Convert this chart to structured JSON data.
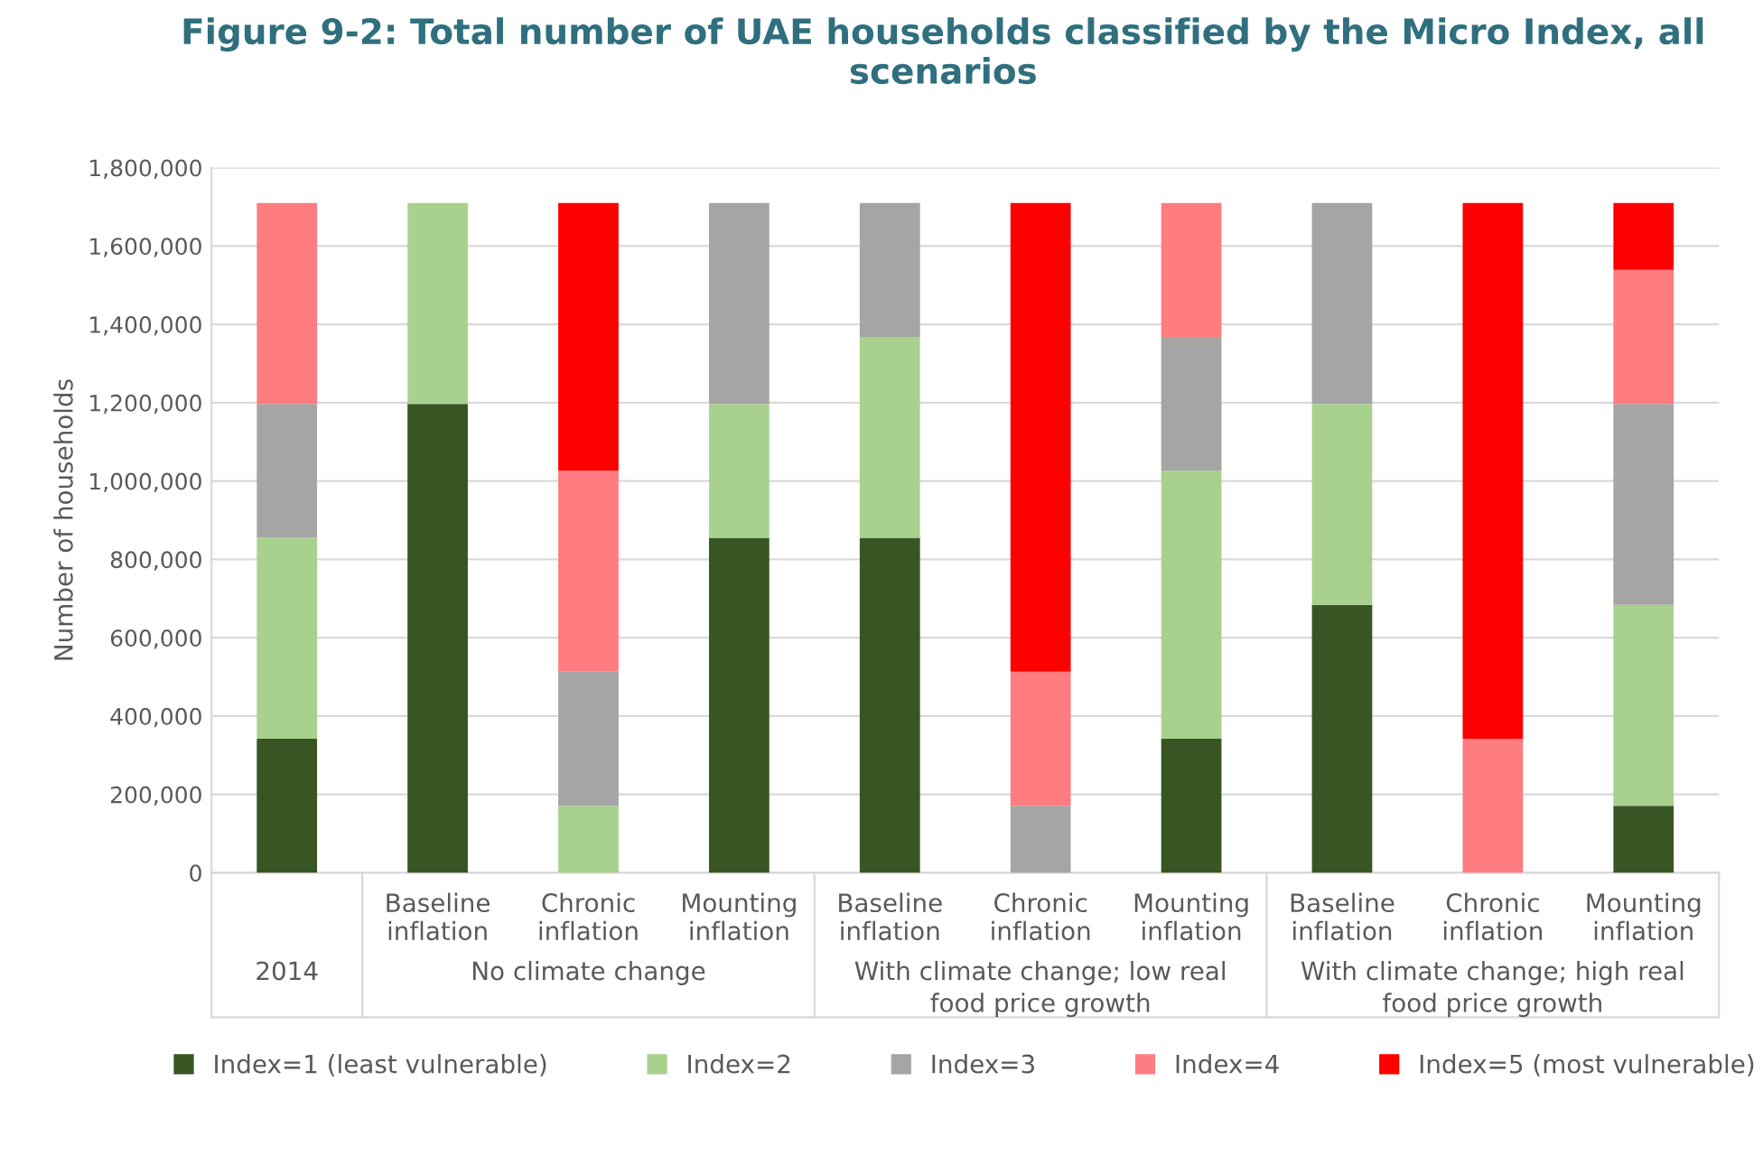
{
  "chart_data": {
    "type": "bar",
    "stacked": true,
    "title": "Figure 9-2: Total number of UAE households classified by the Micro Index, all scenarios",
    "ylabel": "Number of households",
    "categories": [
      null,
      "Baseline\ninflation",
      "Chronic\ninflation",
      "Mounting\ninflation",
      "Baseline\ninflation",
      "Chronic\ninflation",
      "Mounting\ninflation",
      "Baseline\ninflation",
      "Chronic\ninflation",
      "Mounting\ninflation"
    ],
    "annotations": [
      "2014",
      "No climate change",
      "With climate change; low real\nfood price growth",
      "With climate change; high real\nfood price growth"
    ],
    "series": [
      {
        "name": "Index=1 (least vulnerable)",
        "color": "#375623",
        "values": [
          342000,
          1197000,
          0,
          855000,
          855000,
          0,
          342000,
          684000,
          0,
          171000
        ]
      },
      {
        "name": "Index=2",
        "color": "#a9d18e",
        "values": [
          513000,
          513000,
          171000,
          342000,
          513000,
          0,
          684000,
          513000,
          0,
          513000
        ]
      },
      {
        "name": "Index=3",
        "color": "#a5a5a5",
        "values": [
          342000,
          0,
          342000,
          513000,
          342000,
          171000,
          342000,
          513000,
          0,
          513000
        ]
      },
      {
        "name": "Index=4",
        "color": "#ff7c80",
        "values": [
          513000,
          0,
          513000,
          0,
          0,
          342000,
          342000,
          0,
          342000,
          342000
        ]
      },
      {
        "name": "Index=5 (most vulnerable)",
        "color": "#ff0000",
        "values": [
          0,
          0,
          684000,
          0,
          0,
          1197000,
          0,
          0,
          1368000,
          171000
        ]
      }
    ],
    "ylim": [
      0,
      1800000
    ],
    "yticks": [
      {
        "value": 0,
        "label": "0"
      },
      {
        "value": 200000,
        "label": "200,000"
      },
      {
        "value": 400000,
        "label": "400,000"
      },
      {
        "value": 600000,
        "label": "600,000"
      },
      {
        "value": 800000,
        "label": "800,000"
      },
      {
        "value": 1000000,
        "label": "1,000,000"
      },
      {
        "value": 1200000,
        "label": "1,200,000"
      },
      {
        "value": 1400000,
        "label": "1,400,000"
      },
      {
        "value": 1600000,
        "label": "1,600,000"
      },
      {
        "value": 1800000,
        "label": "1,800,000"
      }
    ],
    "grid": "y",
    "legend": "bottom"
  }
}
